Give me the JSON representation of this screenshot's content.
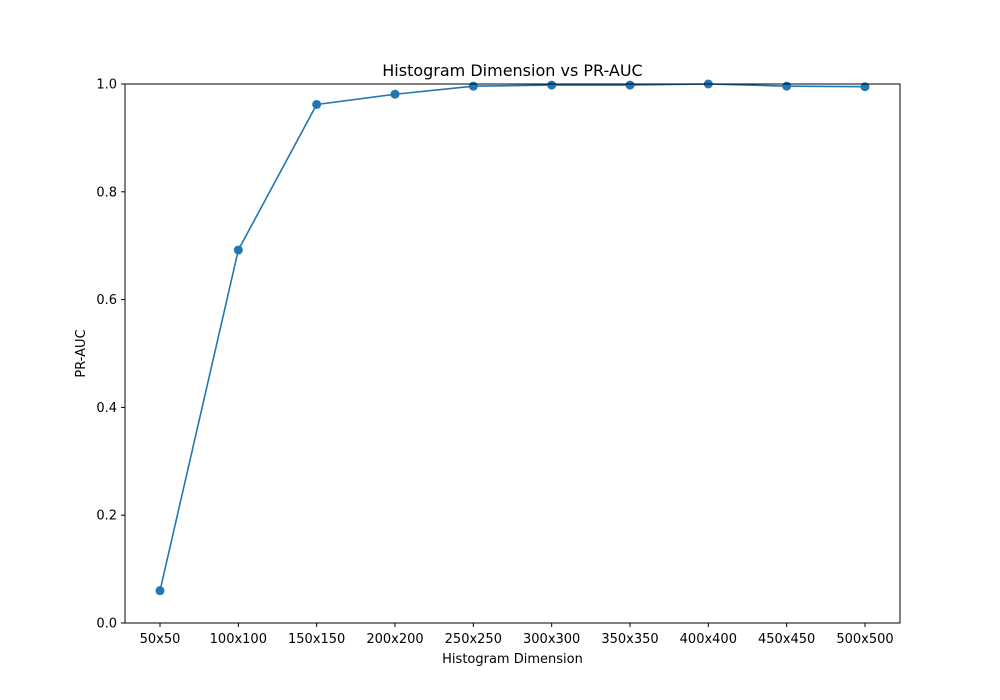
{
  "chart_data": {
    "type": "line",
    "title": "Histogram Dimension vs PR-AUC",
    "xlabel": "Histogram Dimension",
    "ylabel": "PR-AUC",
    "categories": [
      "50x50",
      "100x100",
      "150x150",
      "200x200",
      "250x250",
      "300x300",
      "350x350",
      "400x400",
      "450x450",
      "500x500"
    ],
    "series": [
      {
        "name": "PR-AUC",
        "values": [
          0.06,
          0.692,
          0.962,
          0.981,
          0.996,
          0.998,
          0.998,
          1.0,
          0.996,
          0.995
        ]
      }
    ],
    "ylim": [
      0.0,
      1.0
    ],
    "yticks": [
      "0.0",
      "0.2",
      "0.4",
      "0.6",
      "0.8",
      "1.0"
    ],
    "grid": false,
    "markers": true,
    "line_color": "#1f77b4"
  }
}
